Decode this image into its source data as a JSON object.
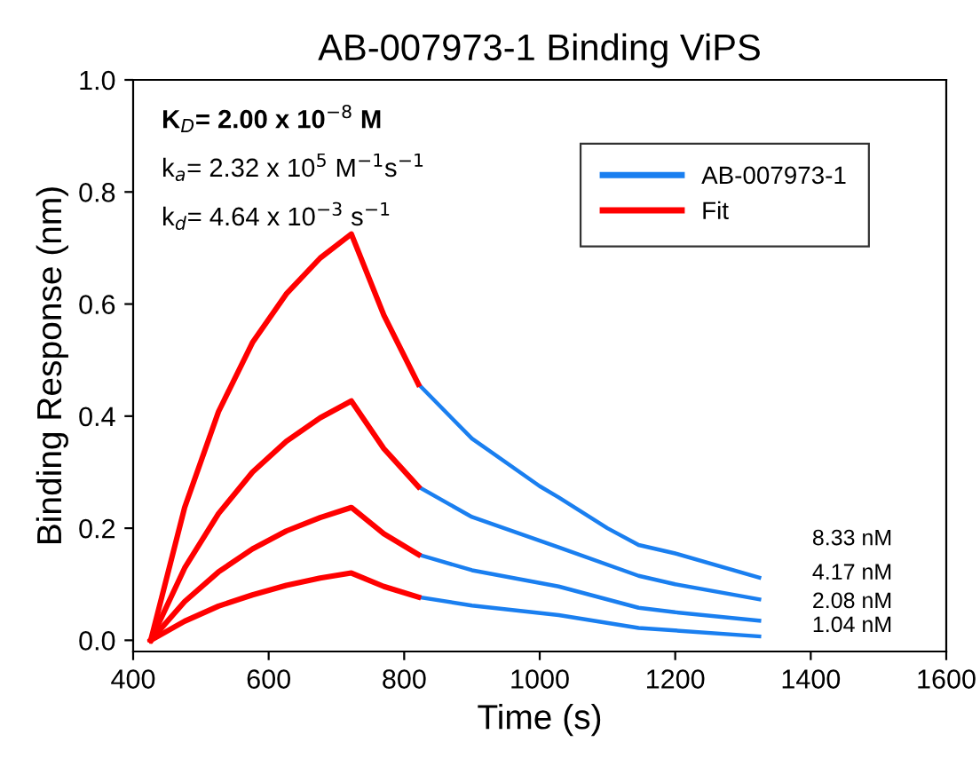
{
  "chart_data": {
    "type": "line",
    "title": "AB-007973-1 Binding ViPS",
    "xlabel": "Time (s)",
    "ylabel": "Binding Response (nm)",
    "xlim": [
      400,
      1600
    ],
    "xticks": [
      400,
      600,
      800,
      1000,
      1200,
      1400,
      1600
    ],
    "ylim": [
      -0.02,
      1.0
    ],
    "yticks": [
      {
        "value": 0,
        "label": "0.0"
      },
      {
        "value": 0.2,
        "label": "0.2"
      },
      {
        "value": 0.4,
        "label": "0.4"
      },
      {
        "value": 0.6,
        "label": "0.6"
      },
      {
        "value": 0.8,
        "label": "0.8"
      },
      {
        "value": 1.0,
        "label": "1.0"
      }
    ],
    "grid": false,
    "legend": "top right",
    "marker": "none",
    "line_style": "solid",
    "series": [
      {
        "name": "AB-007973-1",
        "color": "#1a7ff0",
        "x": [
          821,
          900,
          1000,
          1028,
          1100,
          1146,
          1200,
          1324
        ],
        "values": [
          0.457,
          0.36,
          0.275,
          0.255,
          0.2,
          0.17,
          0.155,
          0.112
        ]
      },
      {
        "color": "#1a7ff0",
        "x": [
          821,
          900,
          1028,
          1146,
          1200,
          1324
        ],
        "values": [
          0.274,
          0.22,
          0.166,
          0.115,
          0.1,
          0.073
        ]
      },
      {
        "color": "#1a7ff0",
        "x": [
          821,
          900,
          1028,
          1146,
          1200,
          1324
        ],
        "values": [
          0.153,
          0.125,
          0.096,
          0.058,
          0.05,
          0.035
        ]
      },
      {
        "color": "#1a7ff0",
        "x": [
          821,
          900,
          1028,
          1146,
          1324
        ],
        "values": [
          0.077,
          0.062,
          0.045,
          0.022,
          0.007
        ]
      },
      {
        "name": "Fit",
        "color": "#ff0000",
        "x": [
          426,
          476,
          526,
          576,
          626,
          676,
          722,
          770,
          821
        ],
        "values": [
          0,
          0.237,
          0.408,
          0.531,
          0.618,
          0.682,
          0.725,
          0.58,
          0.457
        ]
      },
      {
        "color": "#ff0000",
        "x": [
          426,
          476,
          526,
          576,
          626,
          676,
          722,
          770,
          821
        ],
        "values": [
          0,
          0.129,
          0.226,
          0.3,
          0.355,
          0.397,
          0.427,
          0.342,
          0.274
        ]
      },
      {
        "color": "#ff0000",
        "x": [
          426,
          476,
          526,
          576,
          626,
          676,
          722,
          770,
          821
        ],
        "values": [
          0,
          0.069,
          0.122,
          0.163,
          0.195,
          0.219,
          0.237,
          0.19,
          0.153
        ]
      },
      {
        "color": "#ff0000",
        "x": [
          426,
          476,
          526,
          576,
          626,
          676,
          722,
          770,
          821
        ],
        "values": [
          0,
          0.034,
          0.061,
          0.081,
          0.098,
          0.111,
          0.12,
          0.096,
          0.077
        ]
      }
    ],
    "annotations": [
      "K$_{D}$= 2.00 x 10$^{−8}$ M",
      "k$_{a}$= 2.32 x 10$^{5}$ M$^{−1}$s$^{−1}$",
      "k$_{d}$= 4.64 x 10$^{−3}$ s$^{−1}$",
      "8.33 nM",
      "4.17 nM",
      "2.08 nM",
      "1.04 nM"
    ]
  }
}
